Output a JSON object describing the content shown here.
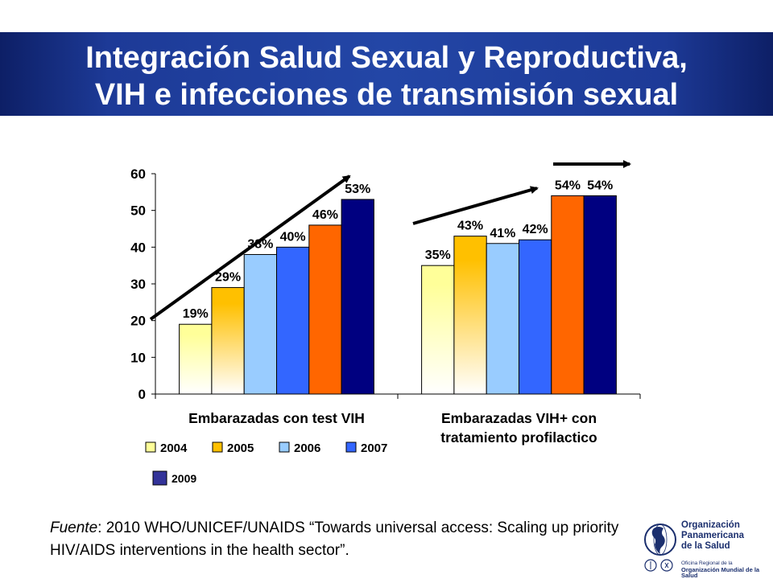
{
  "title": {
    "line1": "Integración Salud Sexual y Reproductiva,",
    "line2": "VIH e infecciones de transmisión sexual"
  },
  "chart_data": {
    "type": "bar",
    "categories": [
      [
        "Embarazadas con test VIH"
      ],
      [
        "Embarazadas VIH+ con",
        "tratamiento profilactico"
      ]
    ],
    "series": [
      {
        "name": "2004",
        "values": [
          19,
          35
        ],
        "color": "#ffff99"
      },
      {
        "name": "2005",
        "values": [
          29,
          43
        ],
        "color": "#ffc000"
      },
      {
        "name": "2006",
        "values": [
          38,
          41
        ],
        "color": "#99ccff"
      },
      {
        "name": "2007",
        "values": [
          40,
          42
        ],
        "color": "#3366ff"
      },
      {
        "name": "",
        "values": [
          46,
          54
        ],
        "color": "#ff6600"
      },
      {
        "name": "2009",
        "values": [
          53,
          54
        ],
        "color": "#000080"
      }
    ],
    "data_labels": [
      [
        "19%",
        "29%",
        "38%",
        "40%",
        "46%",
        "53%"
      ],
      [
        "35%",
        "43%",
        "41%",
        "42%",
        "54%",
        "54%"
      ]
    ],
    "ylim": [
      0,
      60
    ],
    "yticks": [
      "0",
      "10",
      "20",
      "30",
      "40",
      "50",
      "60"
    ],
    "grid": false,
    "legend_position": "bottom"
  },
  "source": {
    "label": "Fuente",
    "text": ": 2010 WHO/UNICEF/UNAIDS “Towards universal access: Scaling up priority HIV/AIDS interventions in the health sector”."
  },
  "logo": {
    "name_lines": [
      "Organización",
      "Panamericana",
      "de la Salud"
    ],
    "sub_lines": [
      "Oficina Regional de la",
      "Organización Mundial de la Salud"
    ]
  }
}
